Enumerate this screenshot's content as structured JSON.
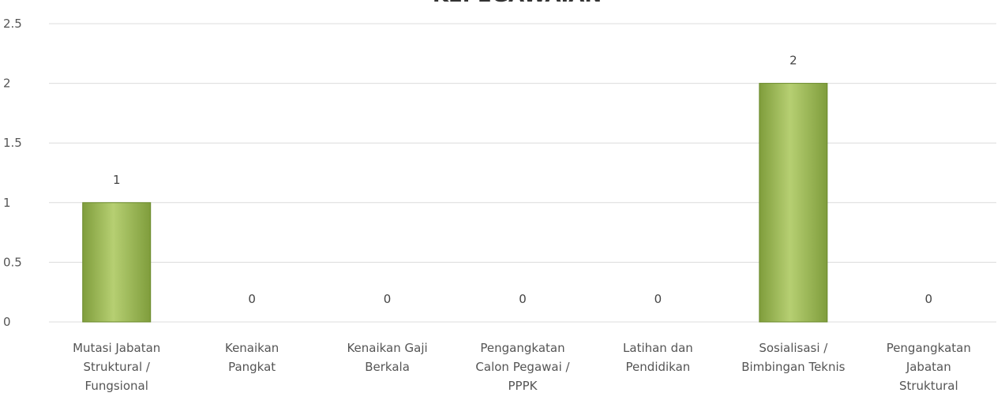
{
  "chart_data": {
    "type": "bar",
    "title": "KEPEGAWAIAN",
    "xlabel": "",
    "ylabel": "",
    "ylim": [
      0,
      2.5
    ],
    "yticks": [
      "0",
      "0.5",
      "1",
      "1.5",
      "2",
      "2.5"
    ],
    "grid": true,
    "legend": "none",
    "categories": [
      [
        "Mutasi Jabatan",
        "Struktural /",
        "Fungsional"
      ],
      [
        "Kenaikan",
        "Pangkat"
      ],
      [
        "Kenaikan Gaji",
        "Berkala"
      ],
      [
        "Pengangkatan",
        "Calon Pegawai /",
        "PPPK"
      ],
      [
        "Latihan dan",
        "Pendidikan"
      ],
      [
        "Sosialisasi /",
        "Bimbingan Teknis"
      ],
      [
        "Pengangkatan",
        "Jabatan",
        "Struktural"
      ]
    ],
    "values": [
      1,
      0,
      0,
      0,
      0,
      2,
      0
    ],
    "bar_color": "#9bbb59",
    "bar_color_light": "#c3d98a",
    "bar_color_dark": "#76923c"
  }
}
